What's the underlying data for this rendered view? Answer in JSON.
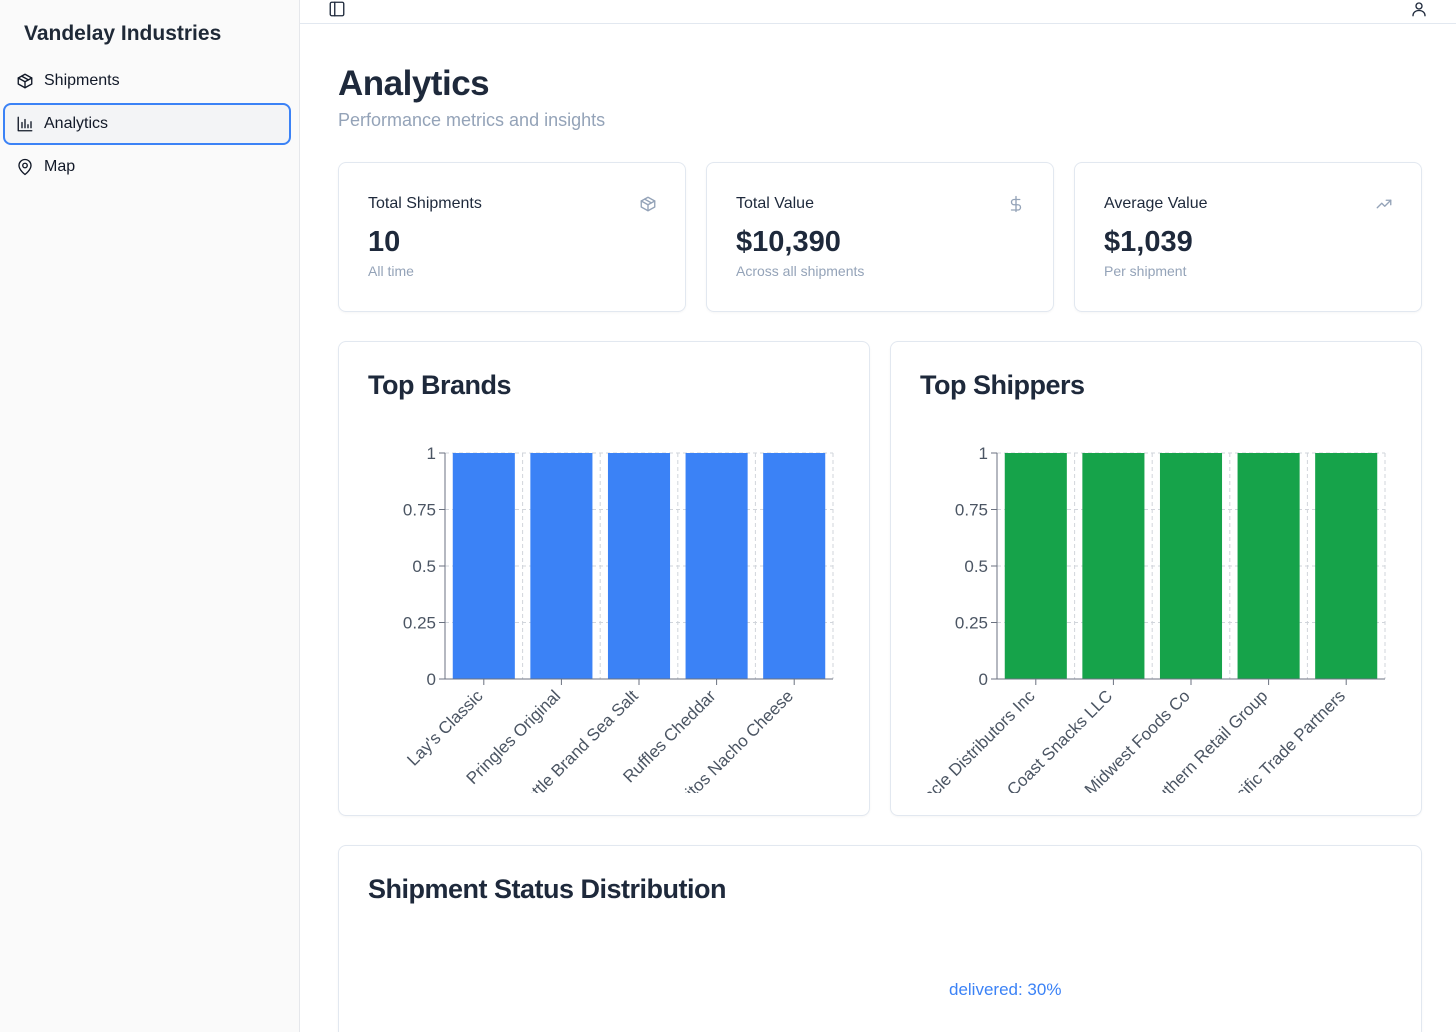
{
  "sidebar": {
    "brand": "Vandelay Industries",
    "items": [
      {
        "label": "Shipments",
        "icon": "package-icon"
      },
      {
        "label": "Analytics",
        "icon": "bar-chart-icon",
        "active": true
      },
      {
        "label": "Map",
        "icon": "map-pin-icon"
      }
    ]
  },
  "header": {
    "toggle_icon": "sidebar-toggle-icon",
    "user_icon": "user-icon"
  },
  "page": {
    "title": "Analytics",
    "subtitle": "Performance metrics and insights"
  },
  "stats": [
    {
      "label": "Total Shipments",
      "value": "10",
      "sub": "All time",
      "icon": "package-icon"
    },
    {
      "label": "Total Value",
      "value": "$10,390",
      "sub": "Across all shipments",
      "icon": "dollar-icon"
    },
    {
      "label": "Average Value",
      "value": "$1,039",
      "sub": "Per shipment",
      "icon": "trending-up-icon"
    }
  ],
  "colors": {
    "brands_bar": "#3b82f6",
    "shippers_bar": "#16a34a",
    "status_delivered": "#3b82f6"
  },
  "status": {
    "title": "Shipment Status Distribution",
    "slice_label": "delivered: 30%"
  },
  "chart_data": [
    {
      "type": "bar",
      "title": "Top Brands",
      "categories": [
        "Lay's Classic",
        "Pringles Original",
        "Kettle Brand Sea Salt",
        "Ruffles Cheddar",
        "Doritos Nacho Cheese"
      ],
      "values": [
        1,
        1,
        1,
        1,
        1
      ],
      "yticks": [
        "0",
        "0.25",
        "0.5",
        "0.75",
        "1"
      ],
      "ylim": [
        0,
        1
      ],
      "grid": true,
      "color": "#3b82f6"
    },
    {
      "type": "bar",
      "title": "Top Shippers",
      "categories": [
        "Pinnacle Distributors Inc",
        "Coast Snacks LLC",
        "Midwest Foods Co",
        "Southern Retail Group",
        "Pacific Trade Partners"
      ],
      "values": [
        1,
        1,
        1,
        1,
        1
      ],
      "yticks": [
        "0",
        "0.25",
        "0.5",
        "0.75",
        "1"
      ],
      "ylim": [
        0,
        1
      ],
      "grid": true,
      "color": "#16a34a"
    },
    {
      "type": "pie",
      "title": "Shipment Status Distribution",
      "slices": [
        {
          "label": "delivered",
          "value": 30
        }
      ]
    }
  ]
}
